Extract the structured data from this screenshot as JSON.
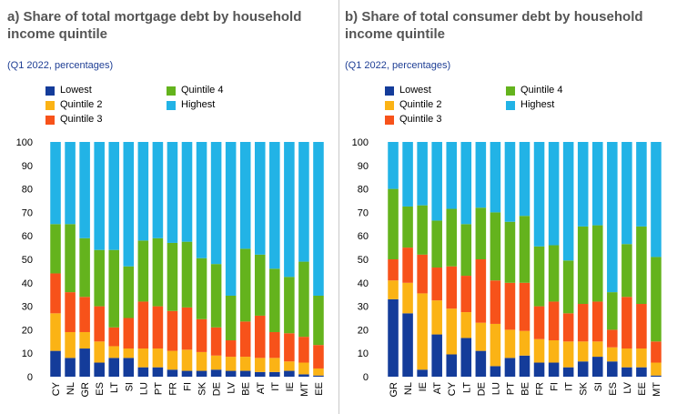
{
  "colors": {
    "lowest": "#143c9a",
    "quintile2": "#fbb315",
    "quintile3": "#f7521a",
    "quintile4": "#64b31d",
    "highest": "#22b3e6"
  },
  "legend": [
    {
      "key": "lowest",
      "label": "Lowest"
    },
    {
      "key": "quintile2",
      "label": "Quintile 2"
    },
    {
      "key": "quintile3",
      "label": "Quintile 3"
    },
    {
      "key": "quintile4",
      "label": "Quintile 4"
    },
    {
      "key": "highest",
      "label": "Highest"
    }
  ],
  "chart_data": [
    {
      "type": "bar",
      "stacked": true,
      "title": "a) Share of total mortgage debt by household income quintile",
      "subtitle": "(Q1 2022, percentages)",
      "ylim": [
        0,
        100
      ],
      "yticks": [
        0,
        10,
        20,
        30,
        40,
        50,
        60,
        70,
        80,
        90,
        100
      ],
      "categories": [
        "CY",
        "NL",
        "GR",
        "ES",
        "LT",
        "SI",
        "LU",
        "PT",
        "FR",
        "FI",
        "SK",
        "DE",
        "LV",
        "BE",
        "AT",
        "IT",
        "IE",
        "MT",
        "EE"
      ],
      "series": [
        {
          "name": "Lowest",
          "key": "lowest",
          "values": [
            11,
            8,
            12,
            6,
            8,
            8,
            4,
            4,
            3,
            2.5,
            2.5,
            3,
            2.5,
            2.5,
            2,
            2,
            2.5,
            1,
            0.5
          ]
        },
        {
          "name": "Quintile 2",
          "key": "quintile2",
          "values": [
            16,
            11,
            7,
            9,
            5,
            4,
            8,
            8,
            8,
            9,
            8,
            6,
            6,
            6,
            6,
            6,
            4,
            5,
            3
          ]
        },
        {
          "name": "Quintile 3",
          "key": "quintile3",
          "values": [
            17,
            17,
            15,
            15,
            8,
            13,
            20,
            18,
            17,
            18,
            14,
            12,
            7,
            15,
            18,
            11,
            12,
            11,
            10
          ]
        },
        {
          "name": "Quintile 4",
          "key": "quintile4",
          "values": [
            21,
            29,
            25,
            24,
            33,
            22,
            26,
            29,
            29,
            28,
            26,
            27,
            19,
            31,
            26,
            27,
            24,
            32,
            21
          ]
        },
        {
          "name": "Highest",
          "key": "highest",
          "values": [
            35,
            35,
            41,
            46,
            46,
            53,
            42,
            41,
            43,
            42.5,
            49.5,
            52,
            65.5,
            45.5,
            48,
            54,
            57.5,
            51,
            65.5
          ]
        }
      ]
    },
    {
      "type": "bar",
      "stacked": true,
      "title": "b) Share of total consumer debt by household income quintile",
      "subtitle": "(Q1 2022, percentages)",
      "ylim": [
        0,
        100
      ],
      "yticks": [
        0,
        10,
        20,
        30,
        40,
        50,
        60,
        70,
        80,
        90,
        100
      ],
      "categories": [
        "GR",
        "NL",
        "IE",
        "AT",
        "CY",
        "LT",
        "DE",
        "LU",
        "PT",
        "BE",
        "FR",
        "FI",
        "IT",
        "SK",
        "SI",
        "ES",
        "LV",
        "EE",
        "MT"
      ],
      "series": [
        {
          "name": "Lowest",
          "key": "lowest",
          "values": [
            33,
            27,
            3,
            18,
            9.5,
            16.5,
            11,
            4.5,
            8,
            9,
            6,
            6,
            4,
            6.5,
            8.5,
            6.5,
            4,
            4,
            0.5
          ]
        },
        {
          "name": "Quintile 2",
          "key": "quintile2",
          "values": [
            8,
            13,
            32.5,
            14.5,
            19.5,
            11,
            12,
            18,
            12,
            10.5,
            10,
            9.5,
            11,
            8.5,
            6.5,
            6,
            8,
            8,
            5.5
          ]
        },
        {
          "name": "Quintile 3",
          "key": "quintile3",
          "values": [
            9,
            15,
            16.5,
            14,
            18,
            15.5,
            27,
            18.5,
            20,
            20.5,
            14,
            16.5,
            12,
            16,
            17,
            7.5,
            22,
            19,
            9
          ]
        },
        {
          "name": "Quintile 4",
          "key": "quintile4",
          "values": [
            30,
            17.5,
            21,
            20,
            24.5,
            22,
            22,
            29,
            26,
            28.5,
            25.5,
            24,
            22.5,
            33,
            32.5,
            16,
            22.5,
            33,
            36
          ]
        },
        {
          "name": "Highest",
          "key": "highest",
          "values": [
            20,
            27.5,
            27,
            33.5,
            28.5,
            35,
            28,
            30,
            34,
            31.5,
            44.5,
            44,
            50.5,
            36,
            35.5,
            64,
            43.5,
            36,
            49
          ]
        }
      ]
    }
  ]
}
